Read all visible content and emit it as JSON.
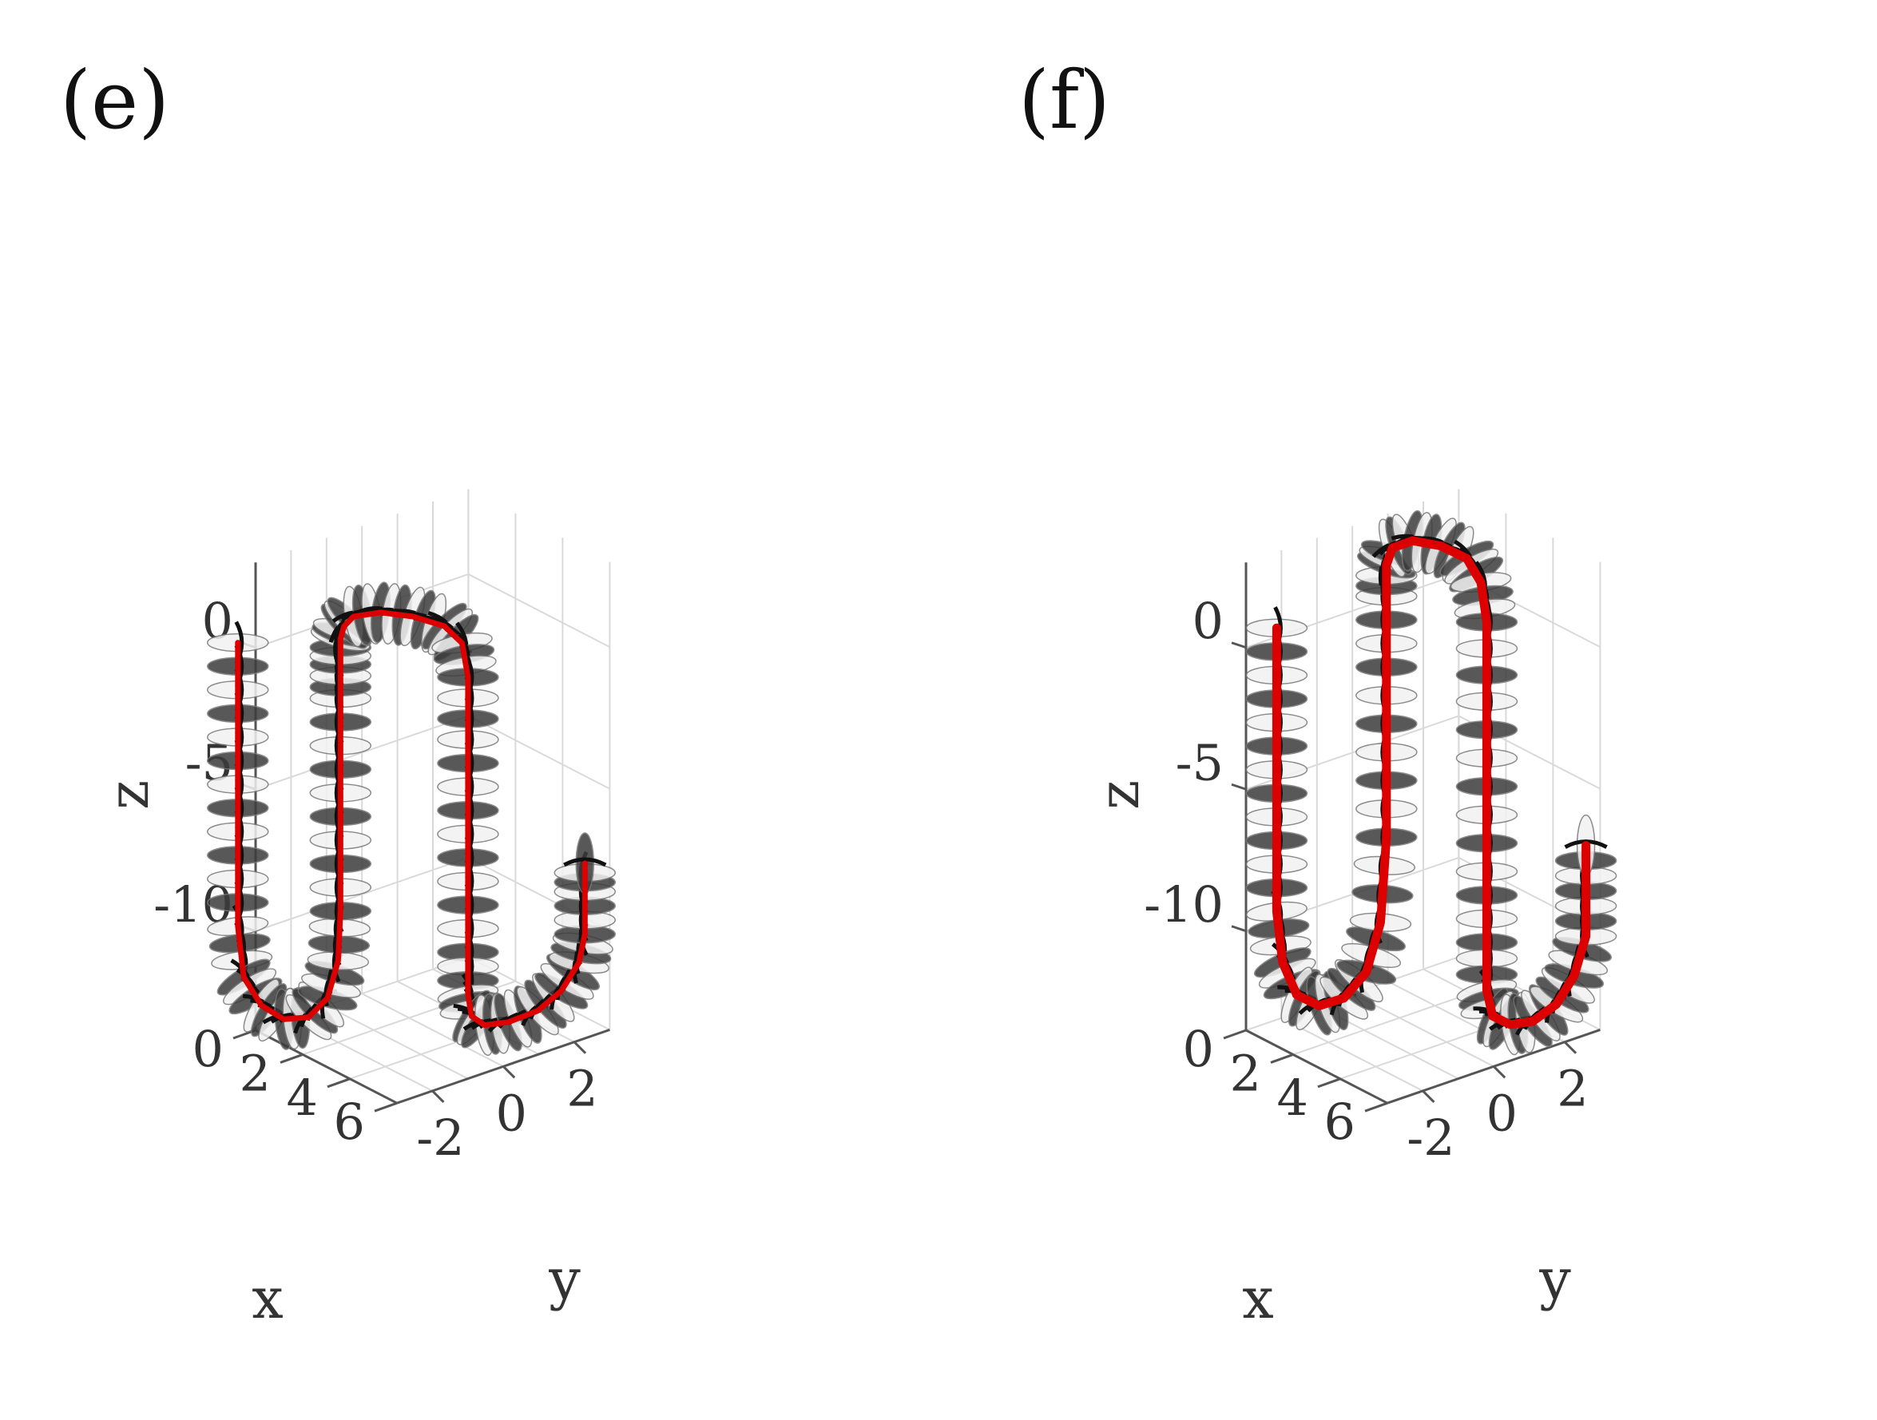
{
  "chart_data": [
    {
      "type": "line3d",
      "panel_label": "(e)",
      "xlabel": "x",
      "ylabel": "y",
      "zlabel": "z",
      "x_ticks": [
        "0",
        "2",
        "4",
        "6"
      ],
      "y_ticks": [
        "-2",
        "0",
        "2"
      ],
      "z_ticks": [
        "0",
        "-5",
        "-10"
      ],
      "xlim": [
        0,
        6
      ],
      "ylim": [
        -3,
        3
      ],
      "zlim": [
        -13.5,
        3
      ],
      "grid": true,
      "colors": {
        "centerline": "#dd0000",
        "filament": "#111111",
        "ribbon_light": "#f2f2f2",
        "ribbon_dark": "#3c3c3c"
      },
      "series": [
        {
          "x": [
            1.5,
            1.5,
            1.5,
            1.5,
            1.5,
            1.6,
            1.9,
            2.4,
            3.0,
            3.5,
            3.8,
            3.9,
            3.9,
            3.9,
            3.9,
            3.9,
            3.9,
            3.9,
            4.0,
            4.4,
            5.0,
            5.6,
            5.9,
            6.0,
            6.0,
            6.0,
            6.0,
            6.0,
            6.0,
            6.0,
            6.1,
            6.5,
            7.0,
            7.4,
            7.7,
            7.8,
            7.8,
            7.8
          ],
          "y": [
            -2.6,
            -2.6,
            -2.6,
            -2.6,
            -2.6,
            -2.5,
            -2.2,
            -1.9,
            -1.6,
            -1.4,
            -1.3,
            -1.3,
            -1.3,
            -1.3,
            -1.3,
            -1.3,
            -1.3,
            -1.2,
            -1.0,
            -0.5,
            0.0,
            0.5,
            0.8,
            0.9,
            0.9,
            0.9,
            0.9,
            0.9,
            0.9,
            1.0,
            1.3,
            1.7,
            2.2,
            2.6,
            2.9,
            3.0,
            3.0,
            3.0
          ],
          "z": [
            0.0,
            -2.5,
            -5.0,
            -7.5,
            -10.0,
            -11.8,
            -12.8,
            -13.2,
            -13.0,
            -12.2,
            -10.8,
            -9.0,
            -6.5,
            -4.0,
            -1.5,
            -0.3,
            0.6,
            1.0,
            1.3,
            1.4,
            1.3,
            1.0,
            0.4,
            -0.8,
            -3.0,
            -5.5,
            -8.0,
            -10.5,
            -12.0,
            -12.8,
            -13.2,
            -13.1,
            -12.7,
            -12.0,
            -11.0,
            -10.0,
            -8.5,
            -7.5
          ]
        }
      ]
    },
    {
      "type": "line3d",
      "panel_label": "(f)",
      "xlabel": "x",
      "ylabel": "y",
      "zlabel": "z",
      "x_ticks": [
        "0",
        "2",
        "4",
        "6"
      ],
      "y_ticks": [
        "-2",
        "0",
        "2"
      ],
      "z_ticks": [
        "0",
        "-5",
        "-10"
      ],
      "xlim": [
        0,
        6
      ],
      "ylim": [
        -3,
        3
      ],
      "zlim": [
        -13.5,
        3
      ],
      "grid": true,
      "colors": {
        "centerline": "#dd0000",
        "filament": "#111111",
        "ribbon_light": "#f2f2f2",
        "ribbon_dark": "#3c3c3c"
      },
      "series": [
        {
          "x": [
            1.6,
            1.6,
            1.6,
            1.6,
            1.6,
            1.7,
            2.0,
            2.5,
            3.1,
            3.6,
            3.9,
            4.0,
            4.0,
            4.0,
            4.0,
            4.0,
            4.1,
            4.5,
            5.1,
            5.6,
            5.9,
            6.0,
            6.0,
            6.0,
            6.0,
            6.0,
            6.0,
            6.1,
            6.4,
            6.9,
            7.3,
            7.6,
            7.8,
            7.8,
            7.8
          ],
          "y": [
            -1.3,
            -1.3,
            -1.3,
            -1.3,
            -1.3,
            -1.2,
            -1.0,
            -0.7,
            -0.4,
            -0.1,
            0.1,
            0.2,
            0.2,
            0.2,
            0.2,
            0.2,
            0.3,
            0.6,
            1.0,
            1.4,
            1.6,
            1.7,
            1.7,
            1.7,
            1.7,
            1.7,
            1.7,
            1.8,
            2.1,
            2.4,
            2.8,
            3.1,
            3.3,
            3.3,
            3.3
          ],
          "z": [
            0.0,
            -2.5,
            -5.0,
            -7.5,
            -10.0,
            -11.8,
            -12.9,
            -13.2,
            -12.8,
            -11.8,
            -10.0,
            -7.0,
            -4.0,
            -1.0,
            1.5,
            2.6,
            3.2,
            3.5,
            3.4,
            3.0,
            2.2,
            0.8,
            -2.0,
            -5.0,
            -8.0,
            -10.5,
            -12.2,
            -13.1,
            -13.4,
            -13.2,
            -12.6,
            -11.6,
            -10.2,
            -8.6,
            -7.0
          ]
        }
      ]
    }
  ]
}
